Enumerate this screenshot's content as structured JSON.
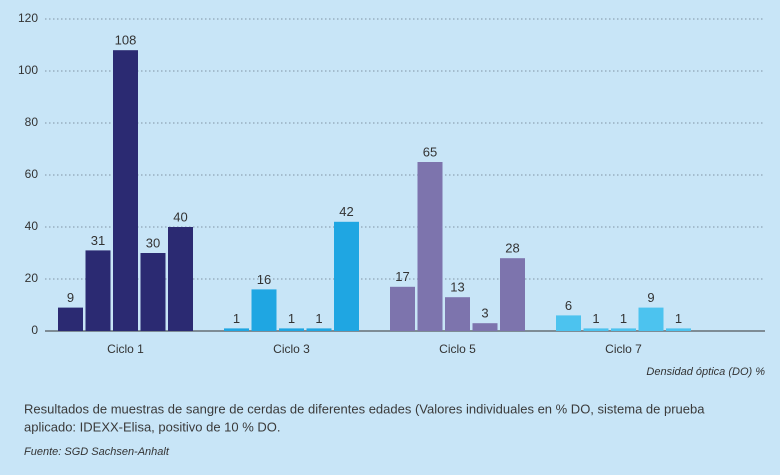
{
  "chart_data": {
    "type": "bar",
    "groups": [
      {
        "label": "Ciclo 1",
        "color": "#2b2a72",
        "values": [
          9,
          31,
          108,
          30,
          40
        ]
      },
      {
        "label": "Ciclo 3",
        "color": "#1fa6e2",
        "values": [
          1,
          16,
          1,
          1,
          42
        ]
      },
      {
        "label": "Ciclo 5",
        "color": "#7d74ad",
        "values": [
          17,
          65,
          13,
          3,
          28
        ]
      },
      {
        "label": "Ciclo 7",
        "color": "#4cc3ef",
        "values": [
          6,
          1,
          1,
          9,
          1
        ]
      }
    ],
    "ylim": [
      0,
      120
    ],
    "yticks": [
      0,
      20,
      40,
      60,
      80,
      100,
      120
    ],
    "grid": true,
    "axis_label": "Densidad óptica (DO) %",
    "caption": [
      "Resultados de muestras de sangre de cerdas de diferentes edades (Valores individuales en % DO, sistema de prueba",
      "aplicado: IDEXX-Elisa, positivo de 10 % DO."
    ],
    "source": "Fuente: SGD Sachsen-Anhalt"
  }
}
